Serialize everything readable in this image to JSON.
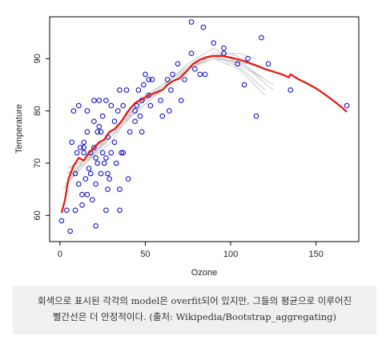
{
  "chart_data": {
    "type": "scatter",
    "title": "",
    "xlabel": "Ozone",
    "ylabel": "Temperature",
    "xlim": [
      -6,
      175
    ],
    "ylim": [
      55,
      98
    ],
    "xticks": [
      0,
      50,
      100,
      150
    ],
    "yticks": [
      60,
      70,
      80,
      90
    ],
    "grid": false,
    "legend": "none",
    "colors": {
      "points": "#0000cc",
      "bagged": "#e8140f",
      "individual": "#c8c8c8",
      "axis": "#000000"
    },
    "points": [
      [
        1,
        59
      ],
      [
        4,
        61
      ],
      [
        6,
        57
      ],
      [
        7,
        74
      ],
      [
        8,
        80
      ],
      [
        9,
        61
      ],
      [
        9,
        68
      ],
      [
        10,
        72
      ],
      [
        11,
        66
      ],
      [
        11,
        81
      ],
      [
        12,
        73
      ],
      [
        13,
        62
      ],
      [
        13,
        64
      ],
      [
        14,
        72
      ],
      [
        14,
        73
      ],
      [
        14,
        74
      ],
      [
        15,
        67
      ],
      [
        16,
        64
      ],
      [
        16,
        76
      ],
      [
        16,
        80
      ],
      [
        17,
        69
      ],
      [
        18,
        68
      ],
      [
        18,
        72
      ],
      [
        19,
        63
      ],
      [
        20,
        73
      ],
      [
        20,
        78
      ],
      [
        20,
        82
      ],
      [
        21,
        58
      ],
      [
        21,
        66
      ],
      [
        21,
        71
      ],
      [
        22,
        70
      ],
      [
        22,
        76
      ],
      [
        23,
        77
      ],
      [
        23,
        82
      ],
      [
        24,
        68
      ],
      [
        24,
        76
      ],
      [
        25,
        72
      ],
      [
        25,
        79
      ],
      [
        26,
        70
      ],
      [
        27,
        61
      ],
      [
        27,
        71
      ],
      [
        27,
        82
      ],
      [
        28,
        65
      ],
      [
        28,
        68
      ],
      [
        28,
        75
      ],
      [
        29,
        67
      ],
      [
        30,
        72
      ],
      [
        30,
        81
      ],
      [
        32,
        74
      ],
      [
        32,
        78
      ],
      [
        33,
        70
      ],
      [
        34,
        80
      ],
      [
        35,
        61
      ],
      [
        35,
        65
      ],
      [
        35,
        84
      ],
      [
        36,
        72
      ],
      [
        37,
        72
      ],
      [
        37,
        81
      ],
      [
        39,
        84
      ],
      [
        40,
        67
      ],
      [
        41,
        76
      ],
      [
        44,
        78
      ],
      [
        44,
        80
      ],
      [
        45,
        81
      ],
      [
        46,
        84
      ],
      [
        47,
        79
      ],
      [
        48,
        76
      ],
      [
        48,
        82
      ],
      [
        49,
        85
      ],
      [
        50,
        87
      ],
      [
        52,
        83
      ],
      [
        52,
        86
      ],
      [
        53,
        81
      ],
      [
        54,
        86
      ],
      [
        59,
        82
      ],
      [
        60,
        79
      ],
      [
        63,
        86
      ],
      [
        64,
        80
      ],
      [
        65,
        84
      ],
      [
        66,
        87
      ],
      [
        69,
        89
      ],
      [
        71,
        82
      ],
      [
        73,
        86
      ],
      [
        77,
        91
      ],
      [
        77,
        97
      ],
      [
        79,
        88
      ],
      [
        82,
        87
      ],
      [
        84,
        96
      ],
      [
        85,
        87
      ],
      [
        90,
        93
      ],
      [
        96,
        91
      ],
      [
        96,
        92
      ],
      [
        104,
        89
      ],
      [
        108,
        85
      ],
      [
        110,
        90
      ],
      [
        115,
        79
      ],
      [
        118,
        94
      ],
      [
        122,
        89
      ],
      [
        135,
        84
      ],
      [
        168,
        81
      ]
    ],
    "bagged_line": [
      [
        1,
        60.5
      ],
      [
        3,
        63
      ],
      [
        5,
        67
      ],
      [
        8,
        69.5
      ],
      [
        11,
        71
      ],
      [
        14,
        70.5
      ],
      [
        17,
        72
      ],
      [
        20,
        73
      ],
      [
        23,
        74
      ],
      [
        26,
        74.5
      ],
      [
        29,
        76
      ],
      [
        32,
        76.5
      ],
      [
        36,
        78
      ],
      [
        40,
        80
      ],
      [
        44,
        81.5
      ],
      [
        48,
        82.2
      ],
      [
        52,
        83
      ],
      [
        56,
        83.5
      ],
      [
        60,
        84
      ],
      [
        63,
        85
      ],
      [
        66,
        85.7
      ],
      [
        70,
        86.2
      ],
      [
        74,
        87.5
      ],
      [
        78,
        89
      ],
      [
        82,
        89.8
      ],
      [
        86,
        90.3
      ],
      [
        90,
        90.5
      ],
      [
        95,
        90.5
      ],
      [
        100,
        90.2
      ],
      [
        105,
        89.8
      ],
      [
        110,
        89.3
      ],
      [
        115,
        88.7
      ],
      [
        120,
        88
      ],
      [
        125,
        87.5
      ],
      [
        130,
        87
      ],
      [
        134,
        86.4
      ],
      [
        135,
        87
      ],
      [
        140,
        86
      ],
      [
        145,
        85.2
      ],
      [
        150,
        84.3
      ],
      [
        155,
        83.2
      ],
      [
        160,
        82
      ],
      [
        165,
        80.7
      ],
      [
        168,
        79.8
      ]
    ],
    "individual_fits": [
      [
        [
          4,
          66
        ],
        [
          15,
          70
        ],
        [
          30,
          75
        ],
        [
          45,
          80
        ],
        [
          60,
          84
        ],
        [
          75,
          88
        ],
        [
          90,
          90
        ],
        [
          105,
          89.5
        ],
        [
          120,
          86
        ]
      ],
      [
        [
          4,
          68
        ],
        [
          15,
          70
        ],
        [
          30,
          74
        ],
        [
          45,
          81
        ],
        [
          60,
          84
        ],
        [
          75,
          88
        ],
        [
          90,
          90.5
        ],
        [
          105,
          89
        ],
        [
          125,
          85
        ]
      ],
      [
        [
          2,
          65
        ],
        [
          15,
          71
        ],
        [
          30,
          76
        ],
        [
          45,
          80
        ],
        [
          60,
          84
        ],
        [
          75,
          88
        ],
        [
          90,
          91
        ],
        [
          105,
          91
        ],
        [
          115,
          90
        ]
      ],
      [
        [
          4,
          69
        ],
        [
          15,
          70.5
        ],
        [
          30,
          75
        ],
        [
          45,
          81
        ],
        [
          60,
          85
        ],
        [
          75,
          88
        ],
        [
          90,
          90
        ],
        [
          105,
          88
        ],
        [
          120,
          83
        ]
      ],
      [
        [
          5,
          67
        ],
        [
          15,
          71
        ],
        [
          30,
          76
        ],
        [
          45,
          81
        ],
        [
          60,
          84
        ],
        [
          75,
          88
        ],
        [
          90,
          90
        ],
        [
          110,
          89
        ],
        [
          130,
          87
        ]
      ],
      [
        [
          6,
          69
        ],
        [
          15,
          71
        ],
        [
          30,
          75
        ],
        [
          45,
          80
        ],
        [
          60,
          84
        ],
        [
          75,
          88
        ],
        [
          90,
          90.5
        ],
        [
          100,
          91
        ],
        [
          110,
          89.5
        ]
      ],
      [
        [
          3,
          66
        ],
        [
          15,
          70
        ],
        [
          30,
          75
        ],
        [
          45,
          82
        ],
        [
          60,
          85
        ],
        [
          75,
          88.5
        ],
        [
          90,
          90.5
        ],
        [
          105,
          88.5
        ],
        [
          120,
          84
        ]
      ],
      [
        [
          4,
          68
        ],
        [
          15,
          70
        ],
        [
          30,
          76
        ],
        [
          45,
          81
        ],
        [
          60,
          84.5
        ],
        [
          75,
          89
        ],
        [
          90,
          92
        ],
        [
          110,
          88
        ],
        [
          125,
          84
        ]
      ]
    ]
  },
  "caption": {
    "line1": "회색으로 표시된 각각의 model은 overfit되어 있지만, 그들의 평균으로 이루어진",
    "line2": "빨간선은 더 안정적이다. (출처: Wikipedia/Bootstrap_aggregating)"
  }
}
